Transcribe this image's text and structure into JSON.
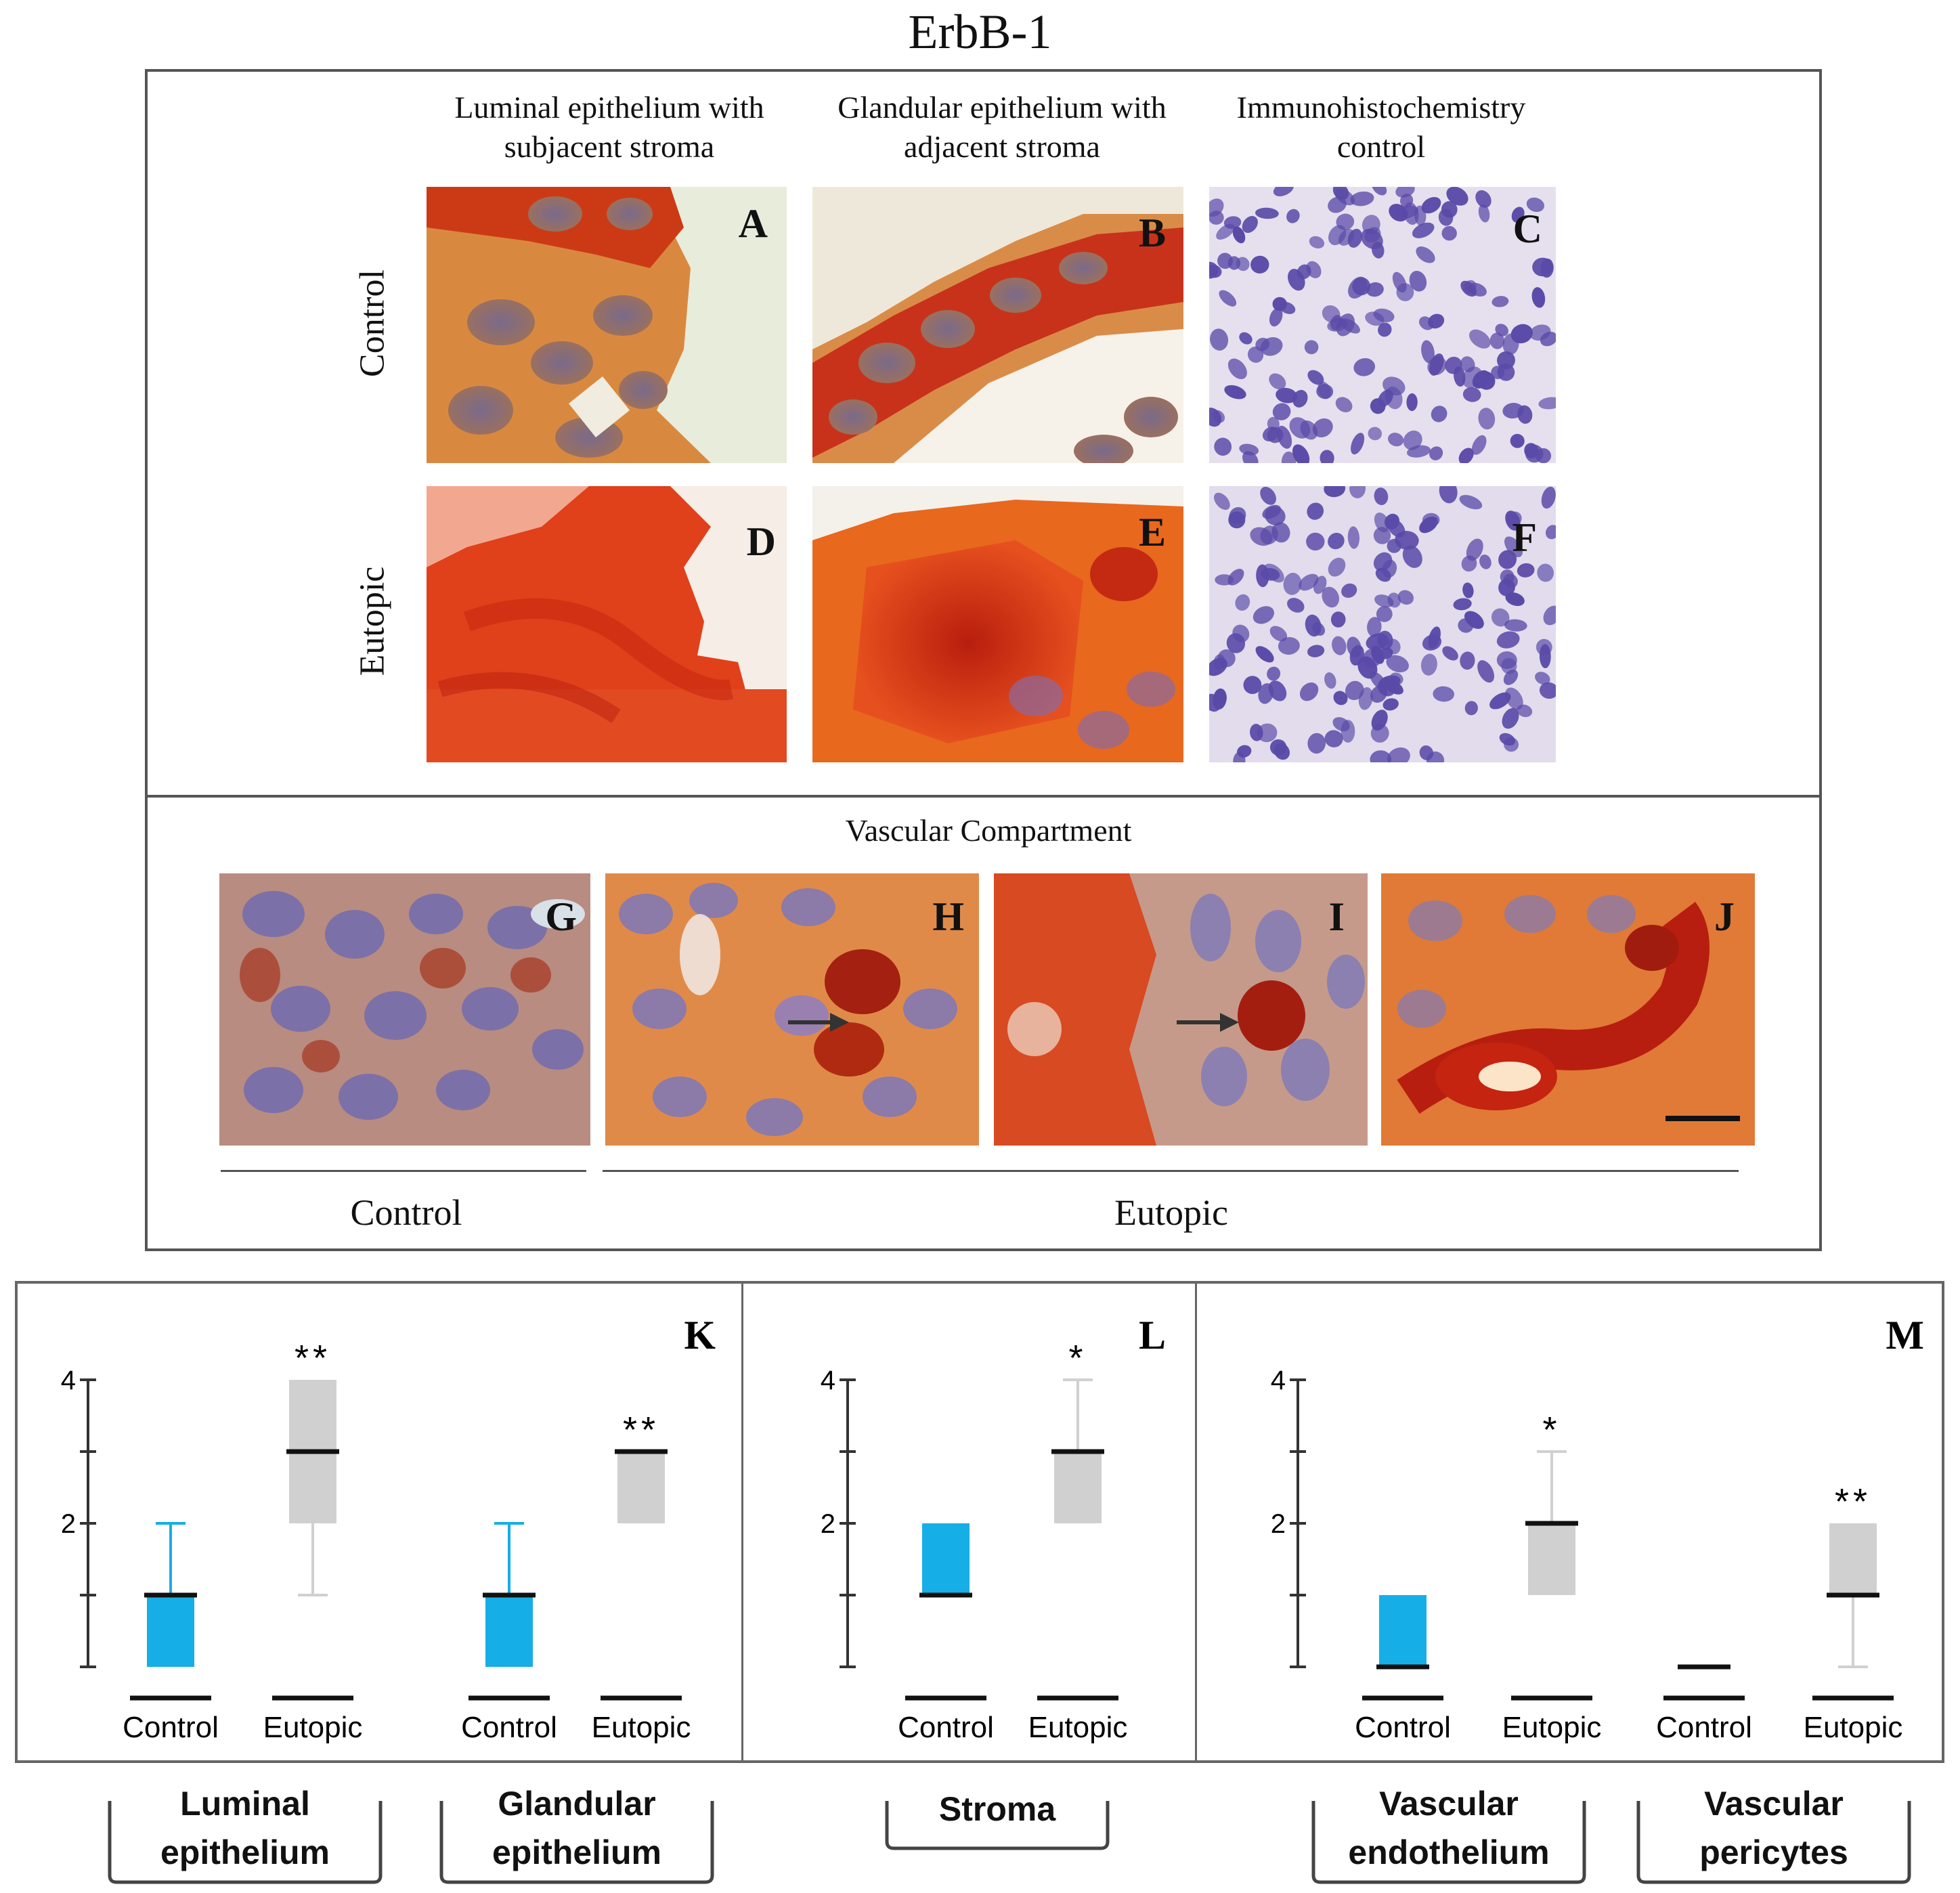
{
  "figure_title": "ErbB-1",
  "columns": [
    "Luminal epithelium with subjacent stroma",
    "Glandular epithelium with adjacent stroma",
    "Immunohistochemistry control"
  ],
  "rows": [
    "Control",
    "Eutopic"
  ],
  "panel_letters": [
    "A",
    "B",
    "C",
    "D",
    "E",
    "F",
    "G",
    "H",
    "I",
    "J"
  ],
  "vascular_title": "Vascular Compartment",
  "vascular_groups": [
    "Control",
    "Eutopic"
  ],
  "colors": {
    "control": "#16aee6",
    "eutopic": "#d0d0d0",
    "stain_red": "#d83a1a",
    "nuclei_blue": "#5a4aa8"
  },
  "chart_data": [
    {
      "type": "box",
      "panel": "K",
      "categories": [
        "Control",
        "Eutopic",
        "Control",
        "Eutopic"
      ],
      "y_ticks": [
        "4",
        "2"
      ],
      "ylim": [
        0,
        4
      ],
      "boxes": [
        {
          "q1": 0,
          "median": 1,
          "q3": 1,
          "max": 2,
          "min": 0,
          "sig": ""
        },
        {
          "q1": 2,
          "median": 3,
          "q3": 4,
          "max": 4,
          "min": 1,
          "sig": "**"
        },
        {
          "q1": 0,
          "median": 1,
          "q3": 1,
          "max": 2,
          "min": 0,
          "sig": ""
        },
        {
          "q1": 2,
          "median": 3,
          "q3": 3,
          "max": 3,
          "min": 2,
          "sig": "**"
        }
      ]
    },
    {
      "type": "box",
      "panel": "L",
      "categories": [
        "Control",
        "Eutopic"
      ],
      "y_ticks": [
        "4",
        "2"
      ],
      "ylim": [
        0,
        4
      ],
      "boxes": [
        {
          "q1": 1,
          "median": 1,
          "q3": 2,
          "max": 2,
          "min": 1,
          "sig": ""
        },
        {
          "q1": 2,
          "median": 3,
          "q3": 3,
          "max": 4,
          "min": 2,
          "sig": "*"
        }
      ]
    },
    {
      "type": "box",
      "panel": "M",
      "categories": [
        "Control",
        "Eutopic",
        "Control",
        "Eutopic"
      ],
      "y_ticks": [
        "4",
        "2"
      ],
      "ylim": [
        0,
        4
      ],
      "boxes": [
        {
          "q1": 0,
          "median": 0,
          "q3": 1,
          "max": 1,
          "min": 0,
          "sig": ""
        },
        {
          "q1": 1,
          "median": 2,
          "q3": 2,
          "max": 3,
          "min": 1,
          "sig": "*"
        },
        {
          "q1": 0,
          "median": 0,
          "q3": 0,
          "max": 0,
          "min": 0,
          "sig": ""
        },
        {
          "q1": 1,
          "median": 1,
          "q3": 2,
          "max": 2,
          "min": 0,
          "sig": "**"
        }
      ]
    }
  ],
  "categories_bottom": [
    "Luminal epithelium",
    "Glandular epithelium",
    "Stroma",
    "Vascular endothelium",
    "Vascular pericytes"
  ]
}
